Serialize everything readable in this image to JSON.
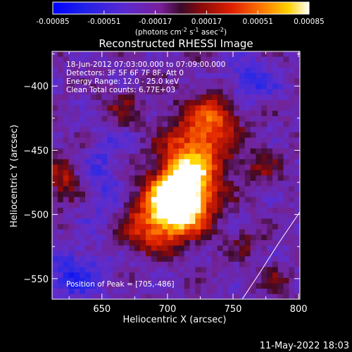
{
  "chart_data": {
    "type": "heatmap",
    "title": "Reconstructed RHESSI Image",
    "xlabel": "Heliocentric X (arcsec)",
    "ylabel": "Heliocentric Y (arcsec)",
    "xlim": [
      612,
      801
    ],
    "ylim": [
      -566,
      -373
    ],
    "x_ticks": [
      650,
      700,
      750,
      800
    ],
    "y_ticks": [
      -550,
      -500,
      -450,
      -400
    ],
    "colorbar": {
      "ticks": [
        -0.00085,
        -0.00051,
        -0.00017,
        0.00017,
        0.00051,
        0.00085
      ],
      "tick_labels": [
        "-0.00085",
        "-0.00051",
        "-0.00017",
        "0.00017",
        "0.00051",
        "0.00085"
      ],
      "units_line1": "(photons cm",
      "units_sup1": "-2",
      "units_line2": " s",
      "units_sup2": "-1",
      "units_line3": " asec",
      "units_sup3": "-2",
      "units_close": ")",
      "range": [
        -0.00085,
        0.00085
      ]
    },
    "annotations": {
      "time": "18-Jun-2012 07:03:00.000 to 07:09:00.000",
      "detectors": "Detectors: 3F 5F 6F 7F 8F, Att 0",
      "energy": "Energy Range: 12.0 - 25.0 keV",
      "clean": "Clean     Total counts: 6.77E+03",
      "peak": "Position of Peak = [705,-486]"
    },
    "peak": {
      "x": 705,
      "y": -486
    },
    "limb_arc": [
      [
        757,
        -566
      ],
      [
        770,
        -546
      ],
      [
        785,
        -522
      ],
      [
        801,
        -498
      ]
    ],
    "colormap": "rhessi-blue-purple-red-yellow-white"
  },
  "footer": {
    "timestamp": "11-May-2022 18:03"
  },
  "colors": {
    "background": "#000000",
    "text": "#ffffff",
    "limb": "#ffffff"
  }
}
